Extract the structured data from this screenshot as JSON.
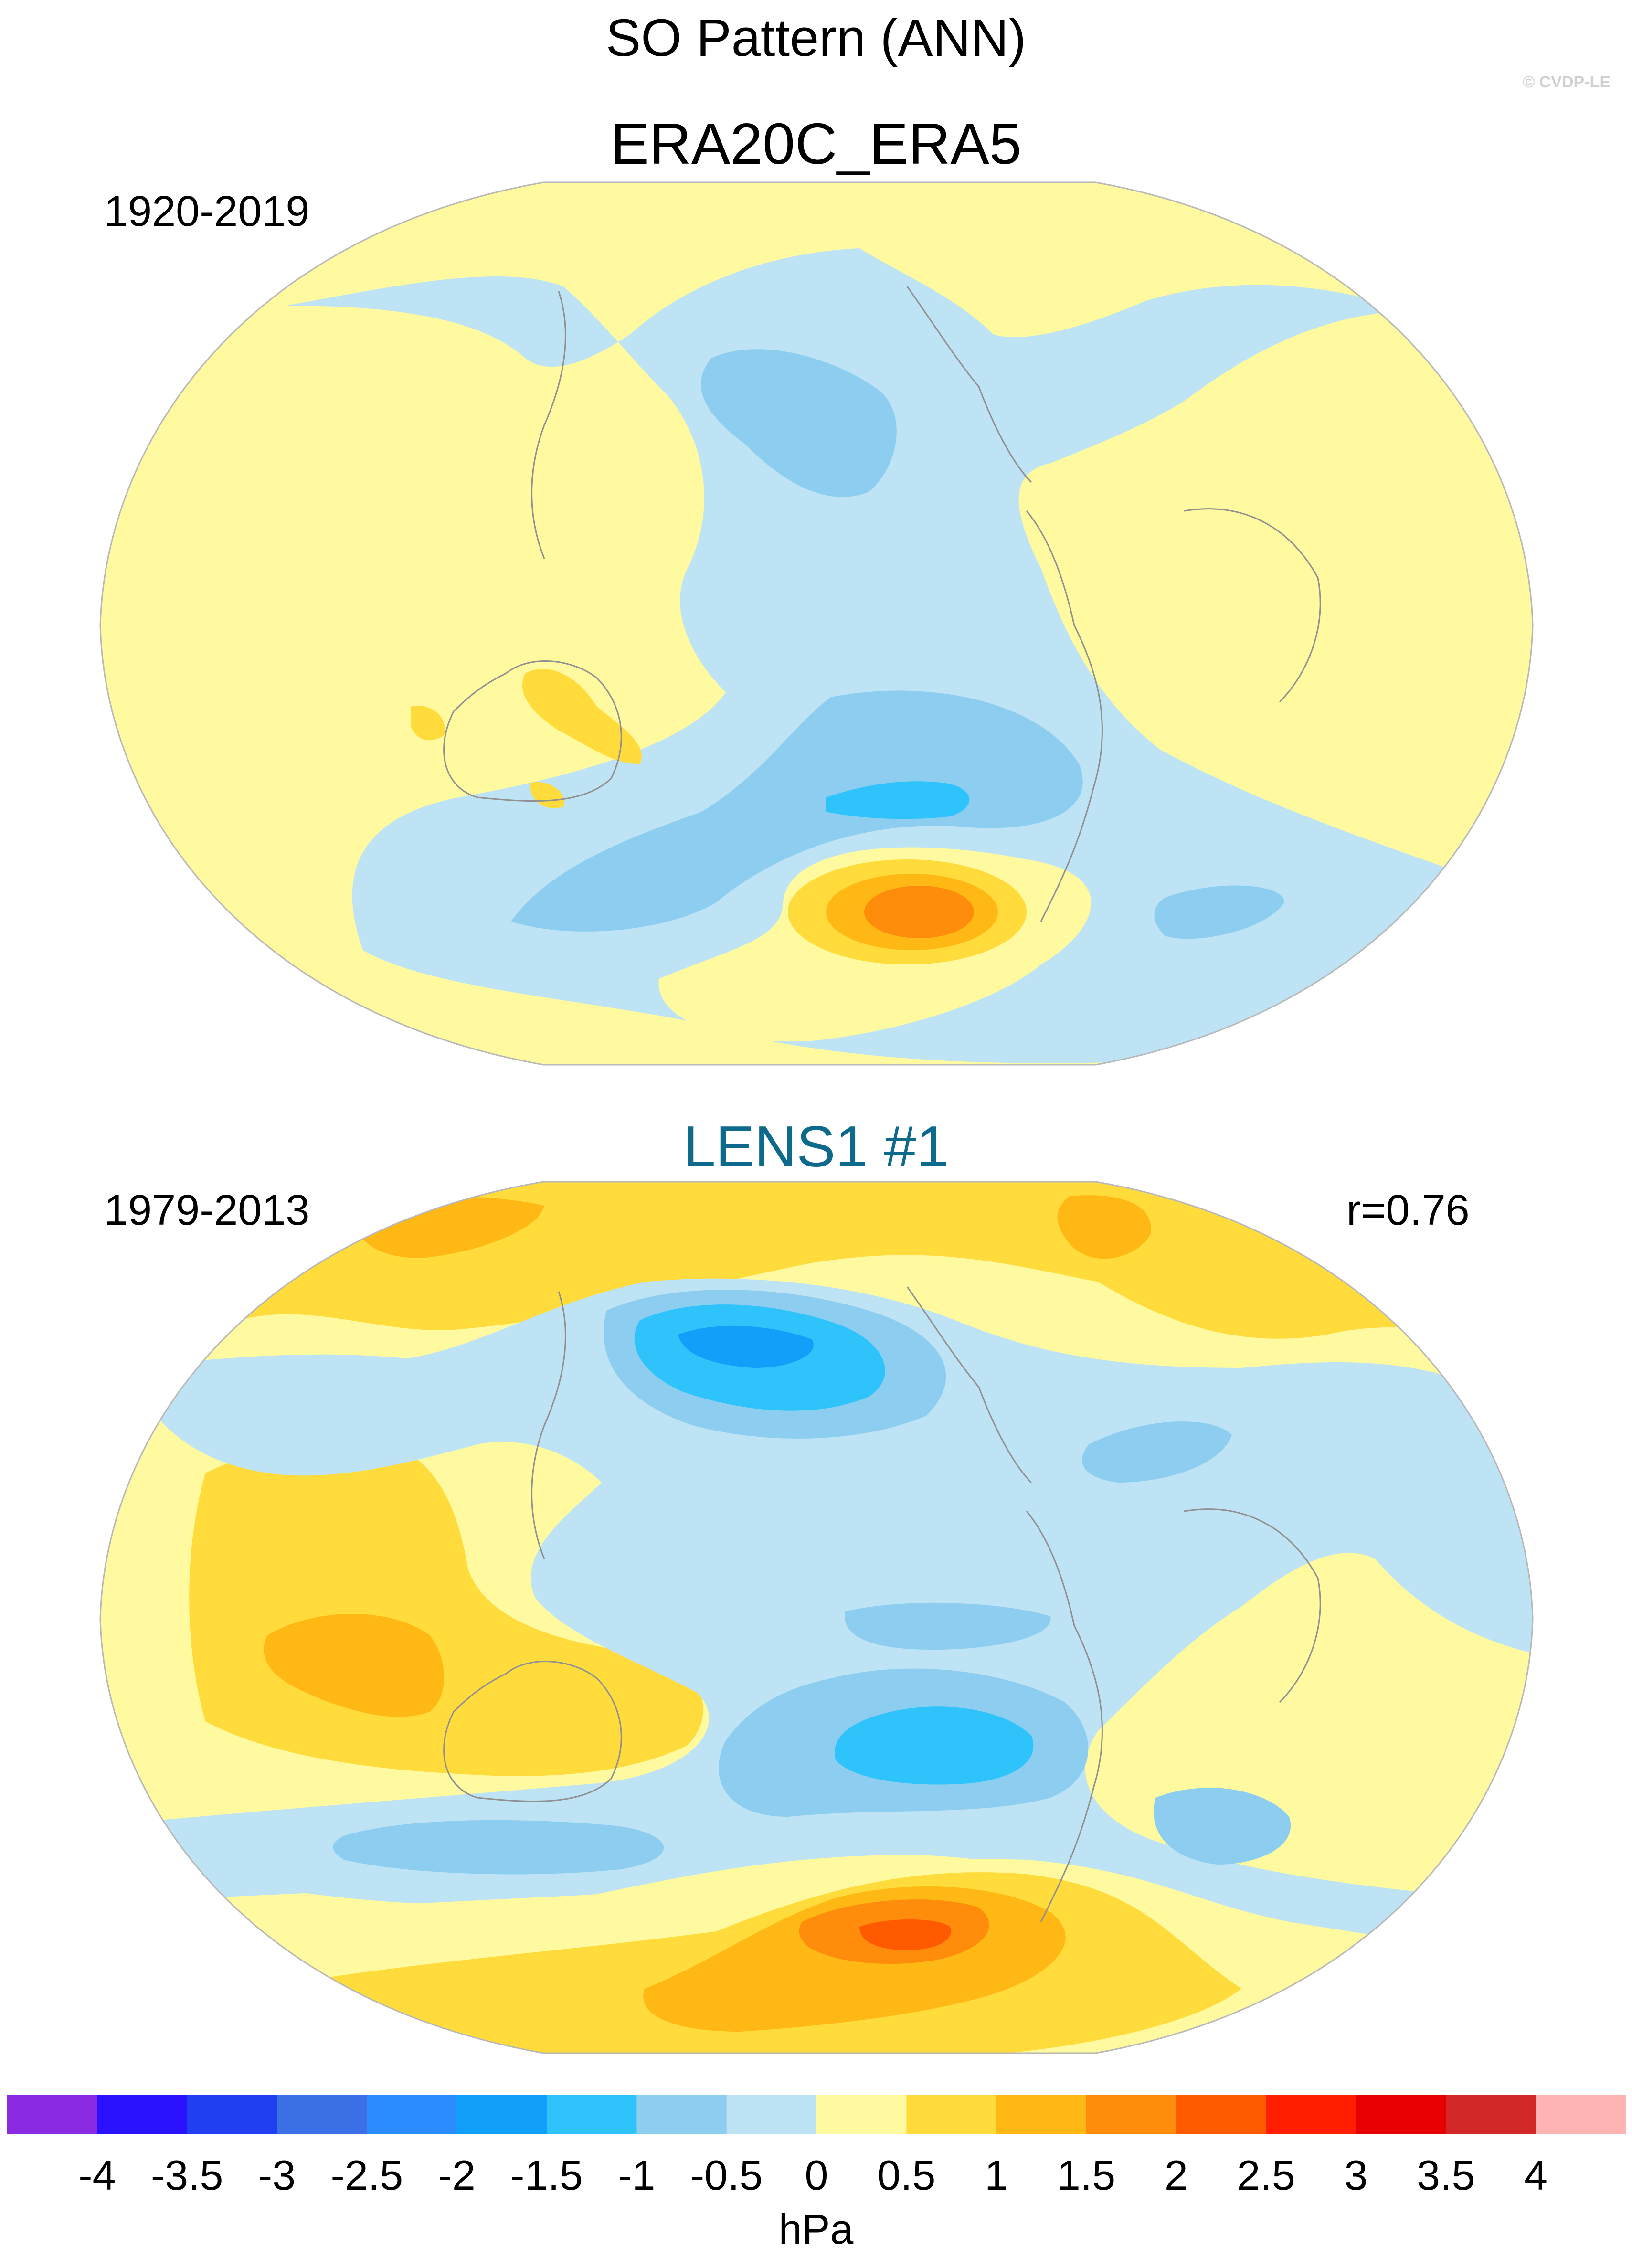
{
  "title": "SO Pattern (ANN)",
  "credit": "© CVDP-LE",
  "panels": [
    {
      "title": "ERA20C_ERA5",
      "period": "1920-2019",
      "correlation": ""
    },
    {
      "title": "LENS1 #1",
      "period": "1979-2013",
      "correlation": "r=0.76"
    }
  ],
  "colorbar": {
    "units": "hPa",
    "labels": [
      "-4",
      "-3.5",
      "-3",
      "-2.5",
      "-2",
      "-1.5",
      "-1",
      "-0.5",
      "0",
      "0.5",
      "1",
      "1.5",
      "2",
      "2.5",
      "3",
      "3.5",
      "4"
    ],
    "colors": [
      "#8a2be2",
      "#2a12ff",
      "#1f3ff0",
      "#3a6fe6",
      "#2a8cff",
      "#129ffa",
      "#2ec3fa",
      "#8ccdf0",
      "#bde3f4",
      "#fff99f",
      "#ffdc3c",
      "#ffb814",
      "#ff8c0a",
      "#ff5a00",
      "#ff1e00",
      "#e60000",
      "#d22828",
      "#ffb4b4"
    ]
  },
  "style": {
    "land_outline": "#909090",
    "background": "#fff99f",
    "title2_color": "#0e6a8c"
  }
}
